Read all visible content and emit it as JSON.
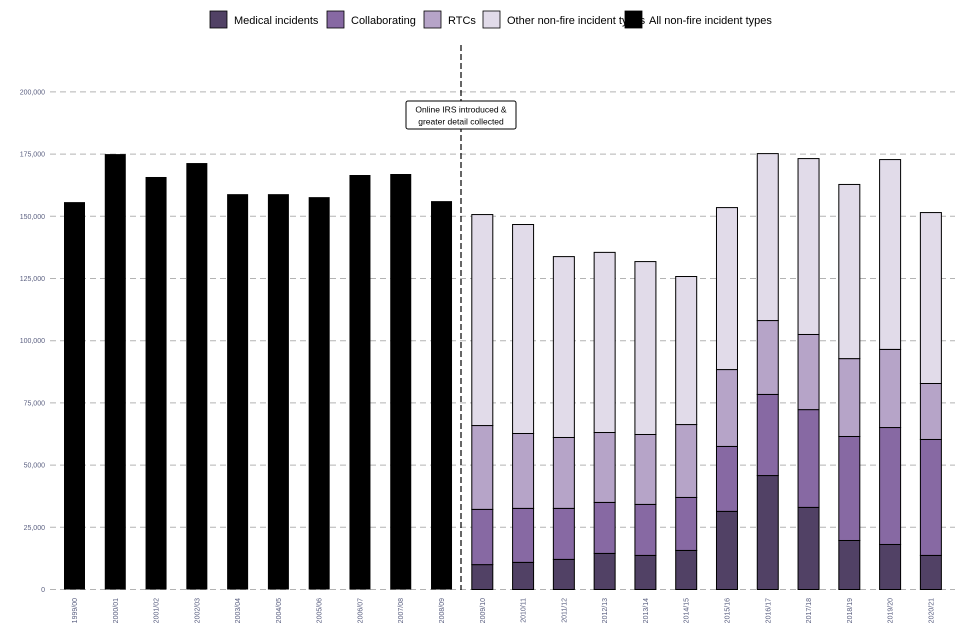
{
  "chart_data": {
    "type": "bar",
    "stacked": true,
    "title": "",
    "xlabel": "",
    "ylabel": "",
    "ylim": [
      0,
      200000
    ],
    "yticks": [
      "0",
      "25,000",
      "50,000",
      "75,000",
      "100,000",
      "125,000",
      "150,000",
      "175,000",
      "200,000"
    ],
    "ytick_values": [
      0,
      25000,
      50000,
      75000,
      100000,
      125000,
      150000,
      175000,
      200000
    ],
    "grid": "horizontal dashed",
    "legend_position": "top",
    "categories": [
      "1999/00",
      "2000/01",
      "2001/02",
      "2002/03",
      "2003/04",
      "2004/05",
      "2005/06",
      "2006/07",
      "2007/08",
      "2008/09",
      "2009/10",
      "2010/11",
      "2011/12",
      "2012/13",
      "2013/14",
      "2014/15",
      "2015/16",
      "2016/17",
      "2017/18",
      "2018/19",
      "2019/20",
      "2020/21"
    ],
    "series": [
      {
        "name": "Medical incidents",
        "color": "#514165",
        "values": [
          null,
          null,
          null,
          null,
          null,
          null,
          null,
          null,
          null,
          null,
          10000,
          10900,
          12100,
          14500,
          13700,
          15700,
          31400,
          45800,
          33000,
          19700,
          18100,
          13700
        ]
      },
      {
        "name": "Collaborating",
        "color": "#8769a3",
        "values": [
          null,
          null,
          null,
          null,
          null,
          null,
          null,
          null,
          null,
          null,
          22200,
          21700,
          20500,
          20500,
          20500,
          21300,
          26100,
          32600,
          39300,
          41800,
          47000,
          46600
        ]
      },
      {
        "name": "RTCs",
        "color": "#b6a4c8",
        "values": [
          null,
          null,
          null,
          null,
          null,
          null,
          null,
          null,
          null,
          null,
          33700,
          30100,
          28500,
          28100,
          28100,
          29300,
          30900,
          29700,
          30200,
          31300,
          31400,
          22500
        ]
      },
      {
        "name": "Other non-fire incident types",
        "color": "#e1dbe9",
        "values": [
          null,
          null,
          null,
          null,
          null,
          null,
          null,
          null,
          null,
          null,
          84800,
          84000,
          72700,
          72400,
          69500,
          59500,
          65100,
          67100,
          70700,
          70000,
          76300,
          68700
        ]
      },
      {
        "name": "All non-fire incident types",
        "color": "#000000",
        "values": [
          155700,
          175000,
          165800,
          171400,
          158900,
          158900,
          157700,
          166600,
          167000,
          156100,
          null,
          null,
          null,
          null,
          null,
          null,
          null,
          null,
          null,
          null,
          null,
          null
        ]
      }
    ],
    "annotation": {
      "lines": [
        "Online IRS introduced &",
        "greater detail collected"
      ],
      "between": [
        "2008/09",
        "2009/10"
      ]
    }
  }
}
